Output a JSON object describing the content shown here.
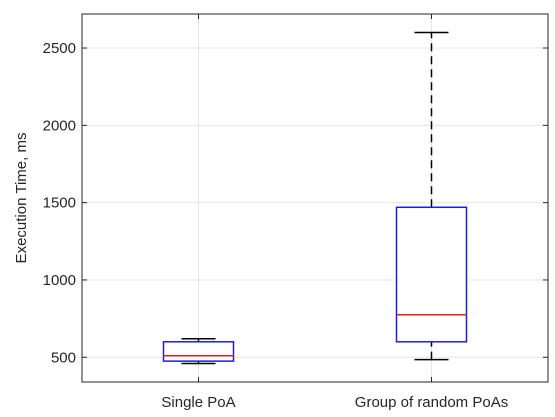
{
  "chart_data": {
    "type": "box",
    "title": "",
    "xlabel": "",
    "ylabel": "Execution Time, ms",
    "ylim": [
      340,
      2720
    ],
    "yticks": [
      500,
      1000,
      1500,
      2000,
      2500
    ],
    "grid": true,
    "categories": [
      "Single PoA",
      "Group of random PoAs"
    ],
    "boxes": [
      {
        "category": "Single PoA",
        "min": 460,
        "q1": 475,
        "median": 510,
        "q3": 600,
        "max": 620
      },
      {
        "category": "Group of random PoAs",
        "min": 485,
        "q1": 600,
        "median": 775,
        "q3": 1470,
        "max": 2600
      }
    ],
    "colors": {
      "box": "#1f1fd6",
      "median": "#e02020",
      "whisker": "#000000",
      "axis": "#262626",
      "grid": "#e6e6e6"
    }
  }
}
